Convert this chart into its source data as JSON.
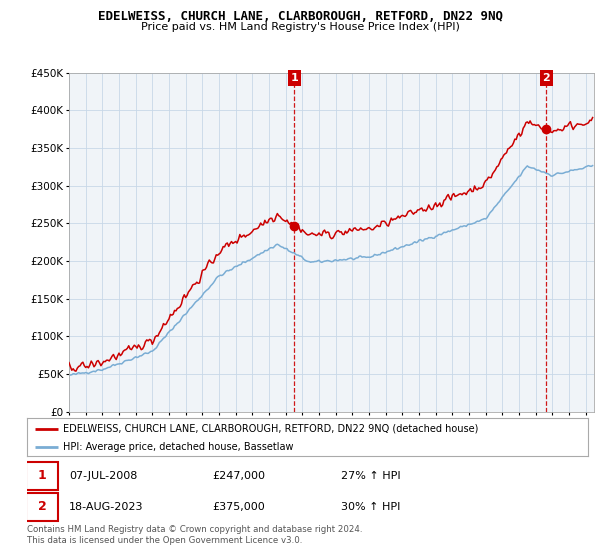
{
  "title": "EDELWEISS, CHURCH LANE, CLARBOROUGH, RETFORD, DN22 9NQ",
  "subtitle": "Price paid vs. HM Land Registry's House Price Index (HPI)",
  "legend_line1": "EDELWEISS, CHURCH LANE, CLARBOROUGH, RETFORD, DN22 9NQ (detached house)",
  "legend_line2": "HPI: Average price, detached house, Bassetlaw",
  "annotation1_date": "07-JUL-2008",
  "annotation1_price": "£247,000",
  "annotation1_hpi": "27% ↑ HPI",
  "annotation2_date": "18-AUG-2023",
  "annotation2_price": "£375,000",
  "annotation2_hpi": "30% ↑ HPI",
  "footnote": "Contains HM Land Registry data © Crown copyright and database right 2024.\nThis data is licensed under the Open Government Licence v3.0.",
  "property_line_color": "#cc0000",
  "hpi_line_color": "#7aadd4",
  "dashed_vline_color": "#cc0000",
  "annotation_box_color": "#cc0000",
  "background_color": "#f0f4f8",
  "grid_color": "#c8d8e8",
  "ylim": [
    0,
    450000
  ],
  "yticks": [
    0,
    50000,
    100000,
    150000,
    200000,
    250000,
    300000,
    350000,
    400000,
    450000
  ],
  "ytick_labels": [
    "£0",
    "£50K",
    "£100K",
    "£150K",
    "£200K",
    "£250K",
    "£300K",
    "£350K",
    "£400K",
    "£450K"
  ],
  "sale1_year": 2008.52,
  "sale1_price": 247000,
  "sale2_year": 2023.63,
  "sale2_price": 375000,
  "xlim_start": 1995,
  "xlim_end": 2026.5
}
